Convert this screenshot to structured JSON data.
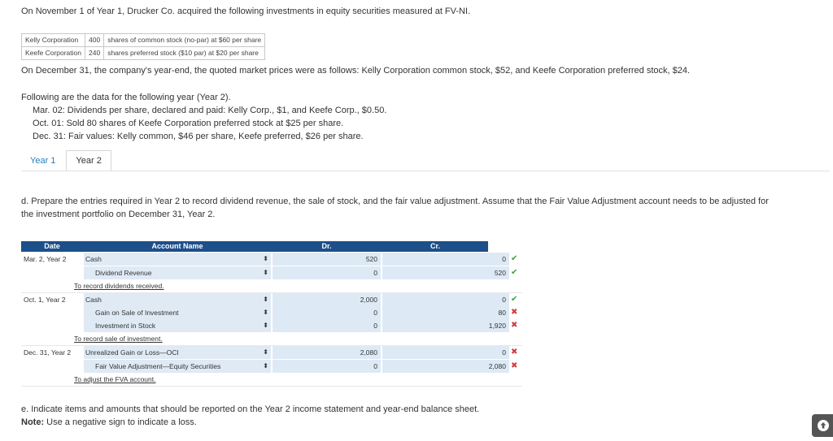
{
  "intro": "On November 1 of Year 1, Drucker Co. acquired the following investments in equity securities measured at FV-NI.",
  "holdings": [
    {
      "name": "Kelly Corporation",
      "qty": "400",
      "desc": "shares of common stock (no-par) at $60 per share"
    },
    {
      "name": "Keefe Corporation",
      "qty": "240",
      "desc": "shares preferred stock ($10 par) at $20 per share"
    }
  ],
  "yearend": "On December 31, the company's year-end, the quoted market prices were as follows: Kelly Corporation common stock, $52, and Keefe Corporation preferred stock, $24.",
  "following": "Following are the data for the following year (Year 2).",
  "events": [
    "Mar. 02: Dividends per share, declared and paid: Kelly Corp., $1, and Keefe Corp., $0.50.",
    "Oct. 01: Sold 80 shares of Keefe Corporation preferred stock at $25 per share.",
    "Dec. 31: Fair values: Kelly common, $46 per share, Keefe preferred, $26 per share."
  ],
  "tabs": [
    "Year 1",
    "Year 2"
  ],
  "part_d": {
    "line1": "d. Prepare the entries required in Year 2 to record dividend revenue, the sale of stock, and the fair value adjustment. Assume that the Fair Value Adjustment account needs to be adjusted for",
    "line2": "the investment portfolio on December 31, Year 2."
  },
  "journal": {
    "headers": {
      "date": "Date",
      "account": "Account Name",
      "dr": "Dr.",
      "cr": "Cr."
    },
    "entries": [
      {
        "date": "Mar. 2, Year 2",
        "lines": [
          {
            "account": "Cash",
            "dr": "520",
            "cr": "0",
            "status": "correct"
          },
          {
            "account": "Dividend Revenue",
            "dr": "0",
            "cr": "520",
            "status": "correct"
          }
        ],
        "note": "To record dividends received."
      },
      {
        "date": "Oct. 1, Year 2",
        "lines": [
          {
            "account": "Cash",
            "dr": "2,000",
            "cr": "0",
            "status": "correct"
          },
          {
            "account": "Gain on Sale of Investment",
            "dr": "0",
            "cr": "80",
            "status": "incorrect"
          },
          {
            "account": "Investment in Stock",
            "dr": "0",
            "cr": "1,920",
            "status": "incorrect"
          }
        ],
        "note": "To record sale of investment."
      },
      {
        "date": "Dec. 31, Year 2",
        "lines": [
          {
            "account": "Unrealized Gain or Loss—OCI",
            "dr": "2,080",
            "cr": "0",
            "status": "incorrect"
          },
          {
            "account": "Fair Value Adjustment—Equity Securities",
            "dr": "0",
            "cr": "2,080",
            "status": "incorrect"
          }
        ],
        "note": "To adjust the FVA account."
      }
    ]
  },
  "part_e": {
    "line1": "e. Indicate items and amounts that should be reported on the Year 2 income statement and year-end balance sheet.",
    "note_label": "Note:",
    "note_text": " Use a negative sign to indicate a loss."
  },
  "icons": {
    "select": "updown-arrows-icon",
    "correct": "checkmark-icon",
    "incorrect": "x-mark-icon",
    "scroll_top": "arrow-up-circle-icon"
  },
  "colors": {
    "header": "#1d4f8a",
    "cell": "#dfeaf5",
    "correct": "#3aa345",
    "incorrect": "#d23c3c",
    "tab_active": "#2a7fc0"
  }
}
